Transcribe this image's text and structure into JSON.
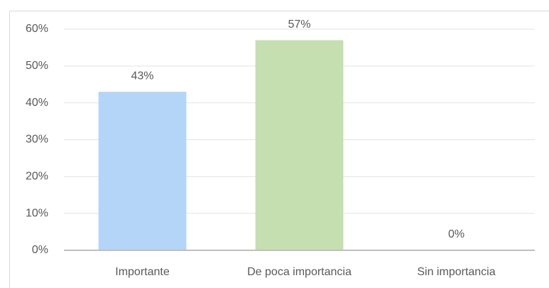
{
  "chart_data": {
    "type": "bar",
    "categories": [
      "Importante",
      "De poca importancia",
      "Sin importancia"
    ],
    "values": [
      43,
      57,
      0
    ],
    "value_labels": [
      "43%",
      "57%",
      "0%"
    ],
    "colors": [
      "#b4d5f7",
      "#c5dfb0",
      "#a9c4e8"
    ],
    "ylim": [
      0,
      60
    ],
    "yticks": [
      {
        "value": 0,
        "label": "0%"
      },
      {
        "value": 10,
        "label": "10%"
      },
      {
        "value": 20,
        "label": "20%"
      },
      {
        "value": 30,
        "label": "30%"
      },
      {
        "value": 40,
        "label": "40%"
      },
      {
        "value": 50,
        "label": "50%"
      },
      {
        "value": 60,
        "label": "60%"
      }
    ],
    "grid": true
  }
}
